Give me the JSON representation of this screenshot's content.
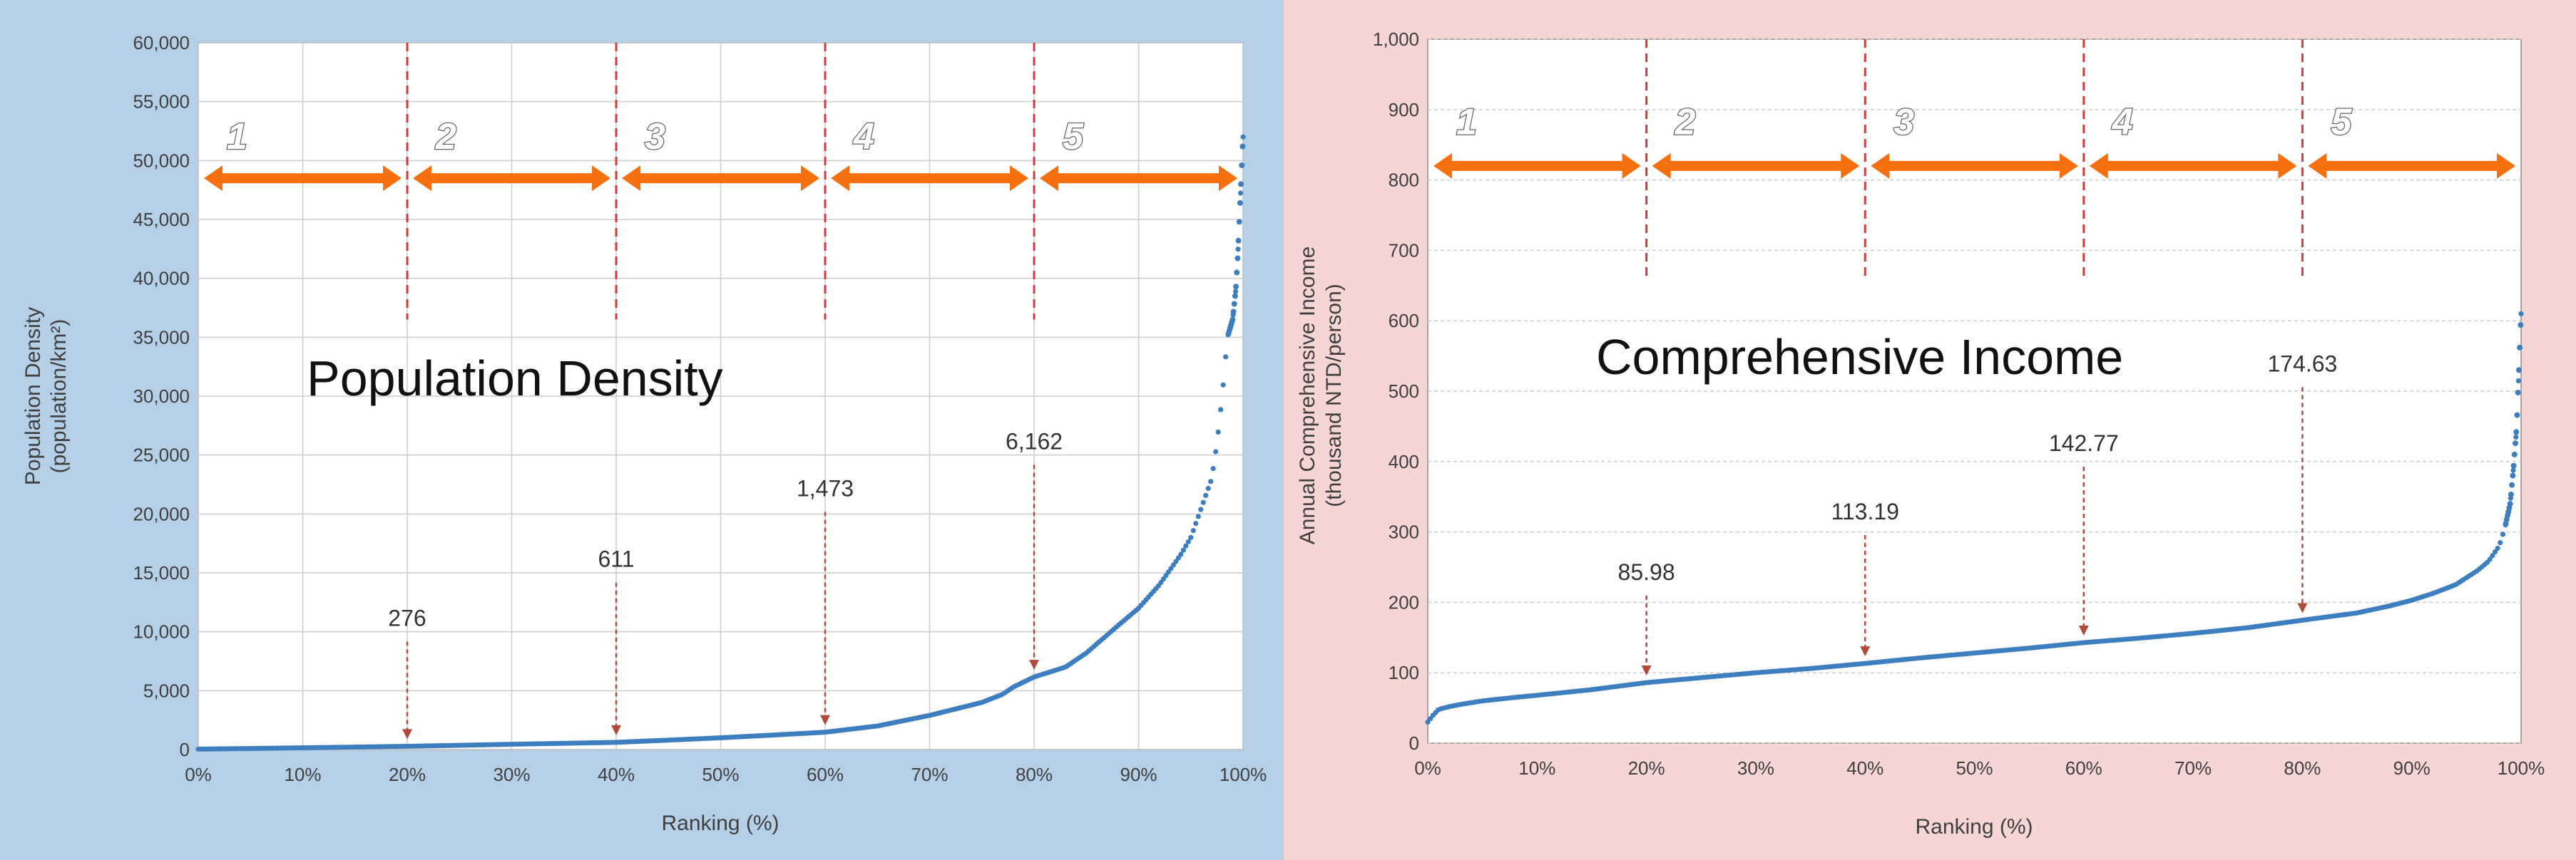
{
  "colors": {
    "left_panel_bg": "#b4cfe6",
    "right_panel_bg": "#f6d5d5",
    "plot_bg": "#ffffff",
    "grid": "#cccccc",
    "series": "#3d7ebf",
    "arrow": "#f7700f",
    "divider": "#d23b3b",
    "annotation": "#b04a3a"
  },
  "chart_data": [
    {
      "type": "scatter",
      "overlay_title": "Population Density",
      "xlabel": "Ranking (%)",
      "ylabel": "Population Density",
      "ylabel_units": "(population/km²)",
      "xlim": [
        0,
        100
      ],
      "ylim": [
        0,
        60000
      ],
      "x_ticks": [
        "0%",
        "10%",
        "20%",
        "30%",
        "40%",
        "50%",
        "60%",
        "70%",
        "80%",
        "90%",
        "100%"
      ],
      "y_ticks": [
        "0",
        "5,000",
        "10,000",
        "15,000",
        "20,000",
        "25,000",
        "30,000",
        "35,000",
        "40,000",
        "45,000",
        "50,000",
        "55,000",
        "60,000"
      ],
      "y_tick_values": [
        0,
        5000,
        10000,
        15000,
        20000,
        25000,
        30000,
        35000,
        40000,
        45000,
        50000,
        55000,
        60000
      ],
      "curve": {
        "x": [
          0,
          5,
          10,
          15,
          20,
          25,
          30,
          35,
          40,
          45,
          50,
          55,
          60,
          65,
          70,
          75,
          77,
          78,
          80,
          83,
          85,
          88,
          90,
          92,
          94,
          95,
          96,
          97,
          97.5,
          98,
          98.5,
          99,
          99.3,
          99.5,
          99.7,
          100
        ],
        "y": [
          40,
          90,
          150,
          210,
          276,
          360,
          450,
          530,
          611,
          800,
          1000,
          1230,
          1473,
          2000,
          2900,
          4000,
          4700,
          5300,
          6162,
          7000,
          8200,
          10500,
          12000,
          14000,
          16500,
          18000,
          20500,
          23000,
          26000,
          30000,
          35000,
          36500,
          39000,
          42000,
          46000,
          52000
        ]
      },
      "zones": [
        {
          "label": "1",
          "from": 0,
          "to": 20
        },
        {
          "label": "2",
          "from": 20,
          "to": 40
        },
        {
          "label": "3",
          "from": 40,
          "to": 60
        },
        {
          "label": "4",
          "from": 60,
          "to": 80
        },
        {
          "label": "5",
          "from": 80,
          "to": 100
        }
      ],
      "zone_arrow_y": 48500,
      "zone_label_y": 51000,
      "divider_x": [
        20,
        40,
        60,
        80
      ],
      "divider_y_range": [
        36500,
        60000
      ],
      "annotations": [
        {
          "x": 20,
          "value": 276,
          "label": "276",
          "label_y": 10500
        },
        {
          "x": 40,
          "value": 611,
          "label": "611",
          "label_y": 15500
        },
        {
          "x": 60,
          "value": 1473,
          "label": "1,473",
          "label_y": 21500
        },
        {
          "x": 80,
          "value": 6162,
          "label": "6,162",
          "label_y": 25500
        }
      ]
    },
    {
      "type": "scatter",
      "overlay_title": "Comprehensive Income",
      "xlabel": "Ranking (%)",
      "ylabel": "Annual Comprehensive Income",
      "ylabel_units": "(thousand NTD/person)",
      "xlim": [
        0,
        100
      ],
      "ylim": [
        0,
        1000
      ],
      "x_ticks": [
        "0%",
        "10%",
        "20%",
        "30%",
        "40%",
        "50%",
        "60%",
        "70%",
        "80%",
        "90%",
        "100%"
      ],
      "y_ticks": [
        "0",
        "100",
        "200",
        "300",
        "400",
        "500",
        "600",
        "700",
        "800",
        "900",
        "1,000"
      ],
      "y_tick_values": [
        0,
        100,
        200,
        300,
        400,
        500,
        600,
        700,
        800,
        900,
        1000
      ],
      "curve": {
        "x": [
          0,
          0.5,
          1,
          2,
          3,
          5,
          8,
          10,
          15,
          20,
          25,
          30,
          35,
          40,
          45,
          50,
          55,
          60,
          65,
          70,
          75,
          80,
          85,
          88,
          90,
          92,
          94,
          96,
          97,
          98,
          98.5,
          99,
          99.3,
          99.6,
          100
        ],
        "y": [
          30,
          40,
          48,
          52,
          55,
          60,
          65,
          68,
          76,
          85.98,
          93,
          100,
          106,
          113.19,
          121,
          128,
          135,
          142.77,
          149,
          156,
          164,
          174.63,
          185,
          195,
          203,
          213,
          225,
          245,
          258,
          280,
          305,
          340,
          390,
          450,
          610
        ]
      },
      "zones": [
        {
          "label": "1",
          "from": 0,
          "to": 20
        },
        {
          "label": "2",
          "from": 20,
          "to": 40
        },
        {
          "label": "3",
          "from": 40,
          "to": 60
        },
        {
          "label": "4",
          "from": 60,
          "to": 80
        },
        {
          "label": "5",
          "from": 80,
          "to": 100
        }
      ],
      "zone_arrow_y": 820,
      "zone_label_y": 865,
      "divider_x": [
        20,
        40,
        60,
        80
      ],
      "divider_y_range": [
        660,
        1000
      ],
      "annotations": [
        {
          "x": 20,
          "value": 85.98,
          "label": "85.98",
          "label_y": 232
        },
        {
          "x": 40,
          "value": 113.19,
          "label": "113.19",
          "label_y": 318
        },
        {
          "x": 60,
          "value": 142.77,
          "label": "142.77",
          "label_y": 415
        },
        {
          "x": 80,
          "value": 174.63,
          "label": "174.63",
          "label_y": 528
        }
      ]
    }
  ]
}
